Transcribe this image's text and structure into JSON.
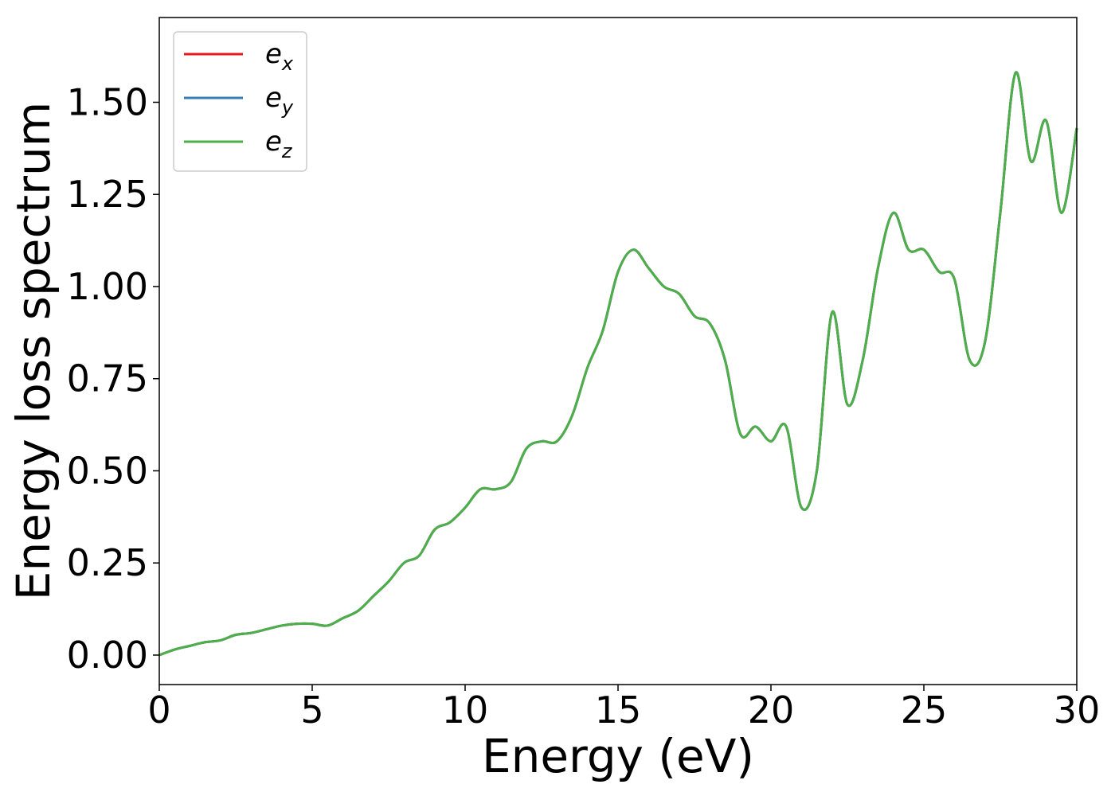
{
  "chart_data": {
    "type": "line",
    "title": "",
    "xlabel": "Energy (eV)",
    "ylabel": "Energy loss spectrum",
    "xlim": [
      0,
      30
    ],
    "ylim": [
      -0.08,
      1.73
    ],
    "xticks": [
      0,
      5,
      10,
      15,
      20,
      25,
      30
    ],
    "xtick_labels": [
      "0",
      "5",
      "10",
      "15",
      "20",
      "25",
      "30"
    ],
    "yticks": [
      0.0,
      0.25,
      0.5,
      0.75,
      1.0,
      1.25,
      1.5
    ],
    "ytick_labels": [
      "0.00",
      "0.25",
      "0.50",
      "0.75",
      "1.00",
      "1.25",
      "1.50"
    ],
    "grid": false,
    "legend_position": "top-left",
    "x": [
      0,
      0.5,
      1,
      1.5,
      2,
      2.5,
      3,
      3.5,
      4,
      4.5,
      5,
      5.5,
      6,
      6.5,
      7,
      7.5,
      8,
      8.5,
      9,
      9.5,
      10,
      10.5,
      11,
      11.5,
      12,
      12.5,
      13,
      13.5,
      14,
      14.5,
      15,
      15.5,
      16,
      16.5,
      17,
      17.5,
      18,
      18.5,
      19,
      19.5,
      20,
      20.5,
      21,
      21.5,
      22,
      22.5,
      23,
      23.5,
      24,
      24.5,
      25,
      25.5,
      26,
      26.5,
      27,
      27.5,
      28,
      28.5,
      29,
      29.5,
      30
    ],
    "series": [
      {
        "name": "e",
        "subscript": "x",
        "color": "#e41a1c",
        "values": [
          0.0,
          0.015,
          0.025,
          0.035,
          0.04,
          0.055,
          0.06,
          0.07,
          0.08,
          0.085,
          0.085,
          0.08,
          0.1,
          0.12,
          0.16,
          0.2,
          0.25,
          0.27,
          0.34,
          0.36,
          0.4,
          0.45,
          0.45,
          0.47,
          0.56,
          0.58,
          0.58,
          0.65,
          0.78,
          0.88,
          1.04,
          1.1,
          1.05,
          1.0,
          0.98,
          0.92,
          0.9,
          0.8,
          0.6,
          0.62,
          0.58,
          0.62,
          0.4,
          0.5,
          0.93,
          0.68,
          0.8,
          1.05,
          1.2,
          1.1,
          1.1,
          1.04,
          1.02,
          0.8,
          0.85,
          1.2,
          1.58,
          1.34,
          1.45,
          1.2,
          1.43
        ]
      },
      {
        "name": "e",
        "subscript": "y",
        "color": "#377eb8",
        "values": [
          0.0,
          0.015,
          0.025,
          0.035,
          0.04,
          0.055,
          0.06,
          0.07,
          0.08,
          0.085,
          0.085,
          0.08,
          0.1,
          0.12,
          0.16,
          0.2,
          0.25,
          0.27,
          0.34,
          0.36,
          0.4,
          0.45,
          0.45,
          0.47,
          0.56,
          0.58,
          0.58,
          0.65,
          0.78,
          0.88,
          1.04,
          1.1,
          1.05,
          1.0,
          0.98,
          0.92,
          0.9,
          0.8,
          0.6,
          0.62,
          0.58,
          0.62,
          0.4,
          0.5,
          0.93,
          0.68,
          0.8,
          1.05,
          1.2,
          1.1,
          1.1,
          1.04,
          1.02,
          0.8,
          0.85,
          1.2,
          1.58,
          1.34,
          1.45,
          1.2,
          1.43
        ]
      },
      {
        "name": "e",
        "subscript": "z",
        "color": "#4daf4a",
        "values": [
          0.0,
          0.015,
          0.025,
          0.035,
          0.04,
          0.055,
          0.06,
          0.07,
          0.08,
          0.085,
          0.085,
          0.08,
          0.1,
          0.12,
          0.16,
          0.2,
          0.25,
          0.27,
          0.34,
          0.36,
          0.4,
          0.45,
          0.45,
          0.47,
          0.56,
          0.58,
          0.58,
          0.65,
          0.78,
          0.88,
          1.04,
          1.1,
          1.05,
          1.0,
          0.98,
          0.92,
          0.9,
          0.8,
          0.6,
          0.62,
          0.58,
          0.62,
          0.4,
          0.5,
          0.93,
          0.68,
          0.8,
          1.05,
          1.2,
          1.1,
          1.1,
          1.04,
          1.02,
          0.8,
          0.85,
          1.2,
          1.58,
          1.34,
          1.45,
          1.2,
          1.43
        ]
      }
    ]
  }
}
